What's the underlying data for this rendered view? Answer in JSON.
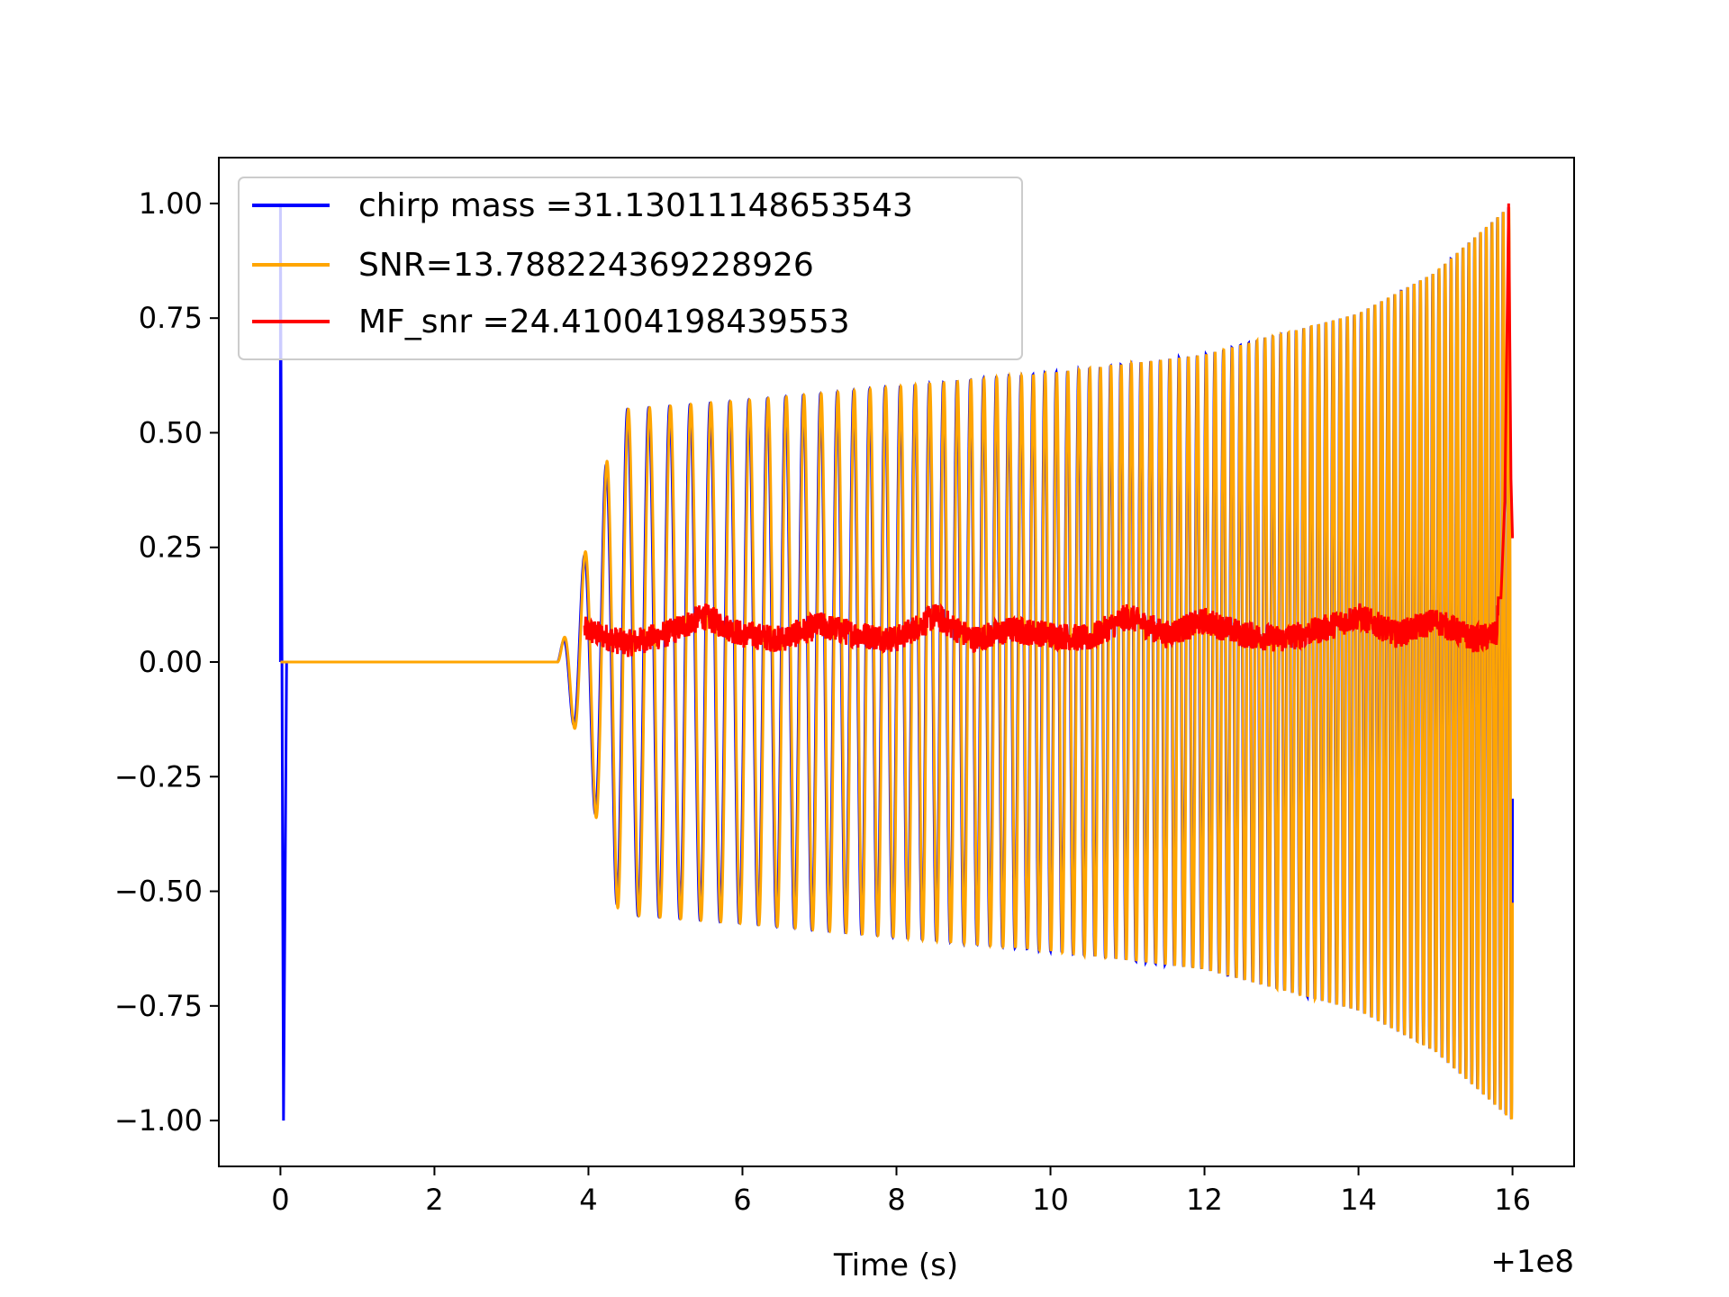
{
  "chart_data": {
    "type": "line",
    "title": "",
    "xlabel": "Time (s)",
    "ylabel": "",
    "x_offset_label": "+1e8",
    "xlim": [
      -0.8,
      16.8
    ],
    "ylim": [
      -1.1,
      1.1
    ],
    "xticks": [
      0,
      2,
      4,
      6,
      8,
      10,
      12,
      14,
      16
    ],
    "xtick_labels": [
      "0",
      "2",
      "4",
      "6",
      "8",
      "10",
      "12",
      "14",
      "16"
    ],
    "yticks": [
      1.0,
      0.75,
      0.5,
      0.25,
      0.0,
      -0.25,
      -0.5,
      -0.75,
      -1.0
    ],
    "ytick_labels": [
      "1.00",
      "0.75",
      "0.50",
      "0.25",
      "0.00",
      "−0.25",
      "−0.50",
      "−0.75",
      "−1.00"
    ],
    "grid": false,
    "legend_position": "upper-left",
    "series": [
      {
        "name": "chirp mass =31.13011148653543",
        "color": "#0000ff",
        "shape": "chirp template: spike to +1.00/-1.00 near t=0, flat at 0 until ~3.6 s, then oscillation rising from ~0.55 to 1.00 envelope by t=16",
        "envelope_points": [
          [
            3.6,
            0.0
          ],
          [
            3.9,
            0.2
          ],
          [
            4.4,
            0.55
          ],
          [
            6,
            0.57
          ],
          [
            8,
            0.6
          ],
          [
            10,
            0.63
          ],
          [
            12,
            0.67
          ],
          [
            14,
            0.76
          ],
          [
            15,
            0.85
          ],
          [
            16,
            1.0
          ]
        ]
      },
      {
        "name": "SNR=13.788224369228926",
        "color": "#ffa500",
        "shape": "whitened signal: flat at 0 until ~3.6 s, then oscillation with same envelope as chirp, peak 1.00 at t=16",
        "envelope_points": [
          [
            3.6,
            0.0
          ],
          [
            3.9,
            0.2
          ],
          [
            4.4,
            0.55
          ],
          [
            6,
            0.57
          ],
          [
            8,
            0.6
          ],
          [
            10,
            0.63
          ],
          [
            12,
            0.67
          ],
          [
            14,
            0.76
          ],
          [
            15,
            0.85
          ],
          [
            16,
            1.0
          ]
        ]
      },
      {
        "name": "MF_snr =24.41004198439553",
        "color": "#ff0000",
        "shape": "matched filter SNR: noisy between 0.0 and 0.13 from t=4 to t=15.8, sharp peak 1.00 at t=15.95, ends ~0.27 at t=16",
        "points": [
          [
            3.95,
            0.07
          ],
          [
            4.5,
            0.04
          ],
          [
            5.0,
            0.06
          ],
          [
            5.5,
            0.1
          ],
          [
            6.0,
            0.06
          ],
          [
            6.5,
            0.05
          ],
          [
            7.0,
            0.08
          ],
          [
            7.5,
            0.06
          ],
          [
            8.0,
            0.05
          ],
          [
            8.5,
            0.1
          ],
          [
            9.0,
            0.05
          ],
          [
            9.5,
            0.07
          ],
          [
            10.0,
            0.06
          ],
          [
            10.5,
            0.05
          ],
          [
            11.0,
            0.1
          ],
          [
            11.5,
            0.06
          ],
          [
            12.0,
            0.09
          ],
          [
            12.5,
            0.06
          ],
          [
            13.0,
            0.05
          ],
          [
            13.5,
            0.07
          ],
          [
            14.0,
            0.1
          ],
          [
            14.5,
            0.06
          ],
          [
            15.0,
            0.09
          ],
          [
            15.5,
            0.05
          ],
          [
            15.8,
            0.06
          ],
          [
            15.95,
            1.0
          ],
          [
            16.0,
            0.27
          ]
        ]
      }
    ]
  }
}
